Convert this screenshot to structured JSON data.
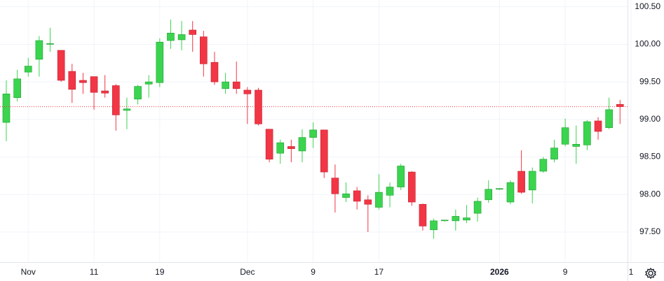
{
  "chart_data": {
    "type": "candlestick",
    "categories": [
      null,
      null,
      "Nov",
      null,
      null,
      null,
      null,
      null,
      "11",
      null,
      null,
      null,
      null,
      null,
      "19",
      null,
      null,
      null,
      null,
      null,
      null,
      null,
      "Dec",
      null,
      null,
      null,
      null,
      null,
      "9",
      null,
      null,
      null,
      null,
      null,
      "17",
      null,
      null,
      null,
      null,
      null,
      null,
      null,
      null,
      null,
      null,
      "2026",
      null,
      null,
      null,
      null,
      null,
      "9",
      null,
      null,
      null,
      null,
      null,
      "1"
    ],
    "open": [
      98.96,
      99.29,
      99.63,
      99.8,
      100.0,
      99.92,
      99.64,
      99.52,
      99.57,
      99.38,
      99.45,
      99.12,
      99.27,
      99.47,
      99.49,
      100.05,
      100.06,
      100.19,
      100.1,
      99.76,
      99.41,
      99.5,
      99.39,
      99.39,
      98.87,
      98.55,
      98.64,
      98.58,
      98.76,
      98.86,
      98.22,
      97.96,
      98.05,
      97.93,
      97.83,
      97.99,
      98.1,
      98.3,
      97.87,
      97.53,
      97.65,
      97.65,
      97.66,
      97.75,
      97.93,
      98.07,
      97.9,
      98.31,
      98.06,
      98.31,
      98.47,
      98.67,
      98.64,
      98.66,
      98.98,
      98.89,
      99.2,
      null
    ],
    "high": [
      99.52,
      99.66,
      99.82,
      100.11,
      100.22,
      99.92,
      99.74,
      99.62,
      99.57,
      99.59,
      99.47,
      99.29,
      99.46,
      99.59,
      100.08,
      100.33,
      100.31,
      100.31,
      100.18,
      99.9,
      99.62,
      99.77,
      99.43,
      99.42,
      98.87,
      98.73,
      98.73,
      98.87,
      98.96,
      98.86,
      98.4,
      98.16,
      98.1,
      97.99,
      98.27,
      98.16,
      98.41,
      98.31,
      97.88,
      97.68,
      97.66,
      97.8,
      97.86,
      97.96,
      98.19,
      98.08,
      98.19,
      98.59,
      98.36,
      98.5,
      98.73,
      99.01,
      98.92,
      98.99,
      99.03,
      99.29,
      99.26,
      null
    ],
    "low": [
      98.71,
      99.24,
      99.57,
      99.57,
      99.9,
      99.5,
      99.22,
      99.34,
      99.13,
      99.29,
      98.85,
      98.87,
      99.2,
      99.29,
      99.43,
      99.94,
      99.92,
      99.9,
      99.57,
      99.46,
      99.34,
      99.34,
      98.94,
      98.92,
      98.43,
      98.41,
      98.43,
      98.43,
      98.62,
      98.22,
      97.76,
      97.9,
      97.8,
      97.5,
      97.8,
      97.83,
      98.06,
      97.85,
      97.52,
      97.41,
      97.64,
      97.52,
      97.62,
      97.64,
      97.89,
      98.06,
      97.87,
      98.01,
      97.88,
      98.29,
      98.43,
      98.64,
      98.41,
      98.59,
      98.73,
      98.87,
      98.94,
      null
    ],
    "close": [
      99.34,
      99.54,
      99.71,
      100.05,
      100.01,
      99.52,
      99.4,
      99.49,
      99.36,
      99.35,
      99.06,
      99.14,
      99.44,
      99.5,
      100.03,
      100.15,
      100.13,
      100.13,
      99.74,
      99.5,
      99.5,
      99.41,
      99.34,
      98.94,
      98.47,
      98.69,
      98.61,
      98.76,
      98.86,
      98.3,
      98.01,
      98.01,
      97.91,
      97.87,
      98.03,
      98.1,
      98.38,
      97.9,
      97.58,
      97.65,
      97.66,
      97.71,
      97.69,
      97.91,
      98.07,
      98.08,
      98.16,
      98.03,
      98.31,
      98.47,
      98.62,
      98.89,
      98.67,
      98.97,
      98.84,
      99.13,
      99.17,
      null
    ],
    "up_color": "#3bd44f",
    "down_color": "#f23645",
    "ylim": [
      97.1,
      100.59
    ],
    "yticks": [
      {
        "value": 97.5,
        "label": "97.50"
      },
      {
        "value": 98,
        "label": "98.00"
      },
      {
        "value": 98.5,
        "label": "98.50"
      },
      {
        "value": 99,
        "label": "99.00"
      },
      {
        "value": 99.5,
        "label": "99.50"
      },
      {
        "value": 100,
        "label": "100.00"
      },
      {
        "value": 100.5,
        "label": "100.50"
      }
    ],
    "grid": true
  }
}
